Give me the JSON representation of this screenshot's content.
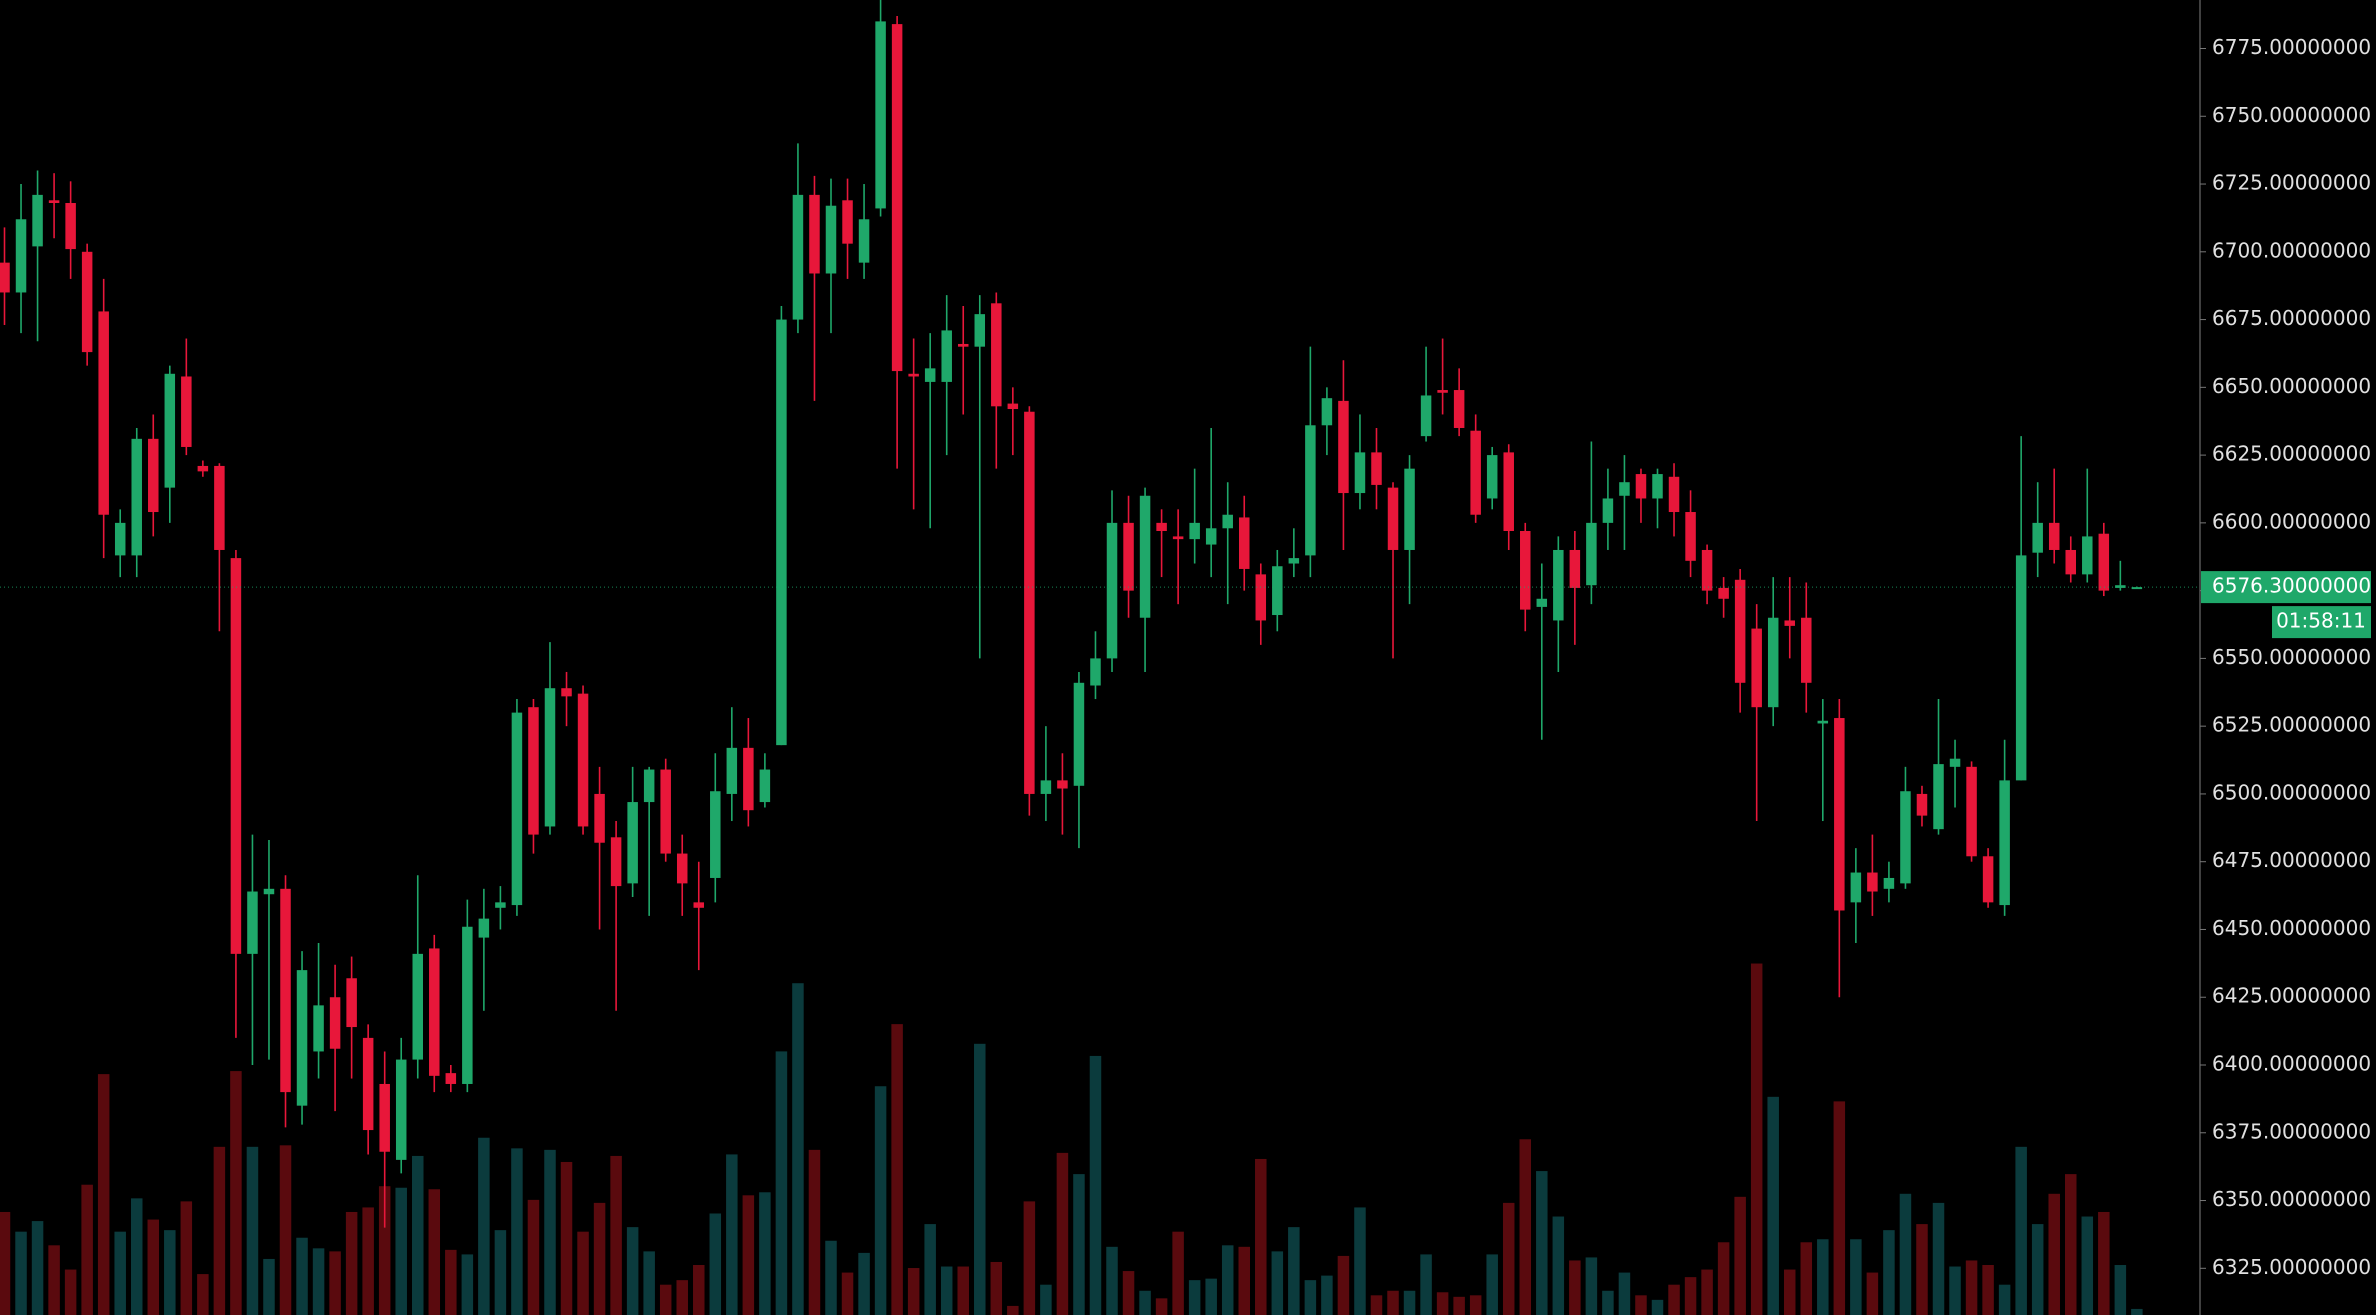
{
  "chart_data": {
    "type": "candlestick",
    "up_color": "#1fa86a",
    "down_color": "#e8173a",
    "volume_up_color": "#0b3b3d",
    "volume_down_color": "#5a0a0e",
    "ylim": [
      6325,
      6775
    ],
    "yticks": [
      {
        "value": 6325,
        "label": "6325.00000000"
      },
      {
        "value": 6350,
        "label": "6350.00000000"
      },
      {
        "value": 6375,
        "label": "6375.00000000"
      },
      {
        "value": 6400,
        "label": "6400.00000000"
      },
      {
        "value": 6425,
        "label": "6425.00000000"
      },
      {
        "value": 6450,
        "label": "6450.00000000"
      },
      {
        "value": 6475,
        "label": "6475.00000000"
      },
      {
        "value": 6500,
        "label": "6500.00000000"
      },
      {
        "value": 6525,
        "label": "6525.00000000"
      },
      {
        "value": 6550,
        "label": "6550.00000000"
      },
      {
        "value": 6575,
        "label": "6575.00000000"
      },
      {
        "value": 6600,
        "label": "6600.00000000"
      },
      {
        "value": 6625,
        "label": "6625.00000000"
      },
      {
        "value": 6650,
        "label": "6650.00000000"
      },
      {
        "value": 6675,
        "label": "6675.00000000"
      },
      {
        "value": 6700,
        "label": "6700.00000000"
      },
      {
        "value": 6725,
        "label": "6725.00000000"
      },
      {
        "value": 6750,
        "label": "6750.00000000"
      },
      {
        "value": 6775,
        "label": "6775.00000000"
      }
    ],
    "hidden_tick_values": [
      6575
    ],
    "last_price": {
      "value": 6576.3,
      "label": "6576.30000000"
    },
    "countdown": "01:58:11",
    "open": [
      6696,
      6685,
      6702,
      6719,
      6718,
      6700,
      6678,
      6588,
      6588,
      6631,
      6613,
      6654,
      6621,
      6621,
      6587,
      6441,
      6463,
      6465,
      6385,
      6405,
      6425,
      6432,
      6410,
      6393,
      6365,
      6402,
      6443,
      6397,
      6393,
      6447,
      6458,
      6459,
      6532,
      6488,
      6539,
      6537,
      6500,
      6484,
      6467,
      6497,
      6509,
      6478,
      6460,
      6469,
      6500,
      6517,
      6497,
      6518,
      6675,
      6721,
      6692,
      6719,
      6696,
      6716,
      6784,
      6655,
      6652,
      6652,
      6666,
      6665,
      6681,
      6644,
      6641,
      6500,
      6505,
      6503,
      6540,
      6550,
      6600,
      6565,
      6600,
      6595,
      6594,
      6592,
      6598,
      6602,
      6581,
      6566,
      6585,
      6588,
      6636,
      6645,
      6611,
      6626,
      6613,
      6590,
      6632,
      6649,
      6649,
      6634,
      6609,
      6626,
      6597,
      6569,
      6564,
      6590,
      6577,
      6600,
      6610,
      6618,
      6609,
      6617,
      6604,
      6590,
      6576,
      6579,
      6561,
      6532,
      6564,
      6565,
      6526,
      6528,
      6460,
      6471,
      6465,
      6467,
      6500,
      6487,
      6510,
      6510,
      6477,
      6459,
      6505,
      6589,
      6600,
      6590,
      6581,
      6596,
      6576,
      6576.2
    ],
    "high": [
      6709,
      6725,
      6730,
      6729,
      6726,
      6703,
      6690,
      6605,
      6635,
      6640,
      6658,
      6668,
      6623,
      6622,
      6590,
      6485,
      6483,
      6470,
      6442,
      6445,
      6437,
      6440,
      6415,
      6405,
      6410,
      6470,
      6448,
      6400,
      6461,
      6465,
      6466,
      6535,
      6535,
      6556,
      6545,
      6540,
      6510,
      6490,
      6510,
      6510,
      6513,
      6485,
      6475,
      6515,
      6532,
      6528,
      6515,
      6680,
      6740,
      6728,
      6727,
      6727,
      6725,
      6793,
      6787,
      6668,
      6670,
      6684,
      6680,
      6684,
      6685,
      6650,
      6643,
      6525,
      6515,
      6545,
      6560,
      6612,
      6610,
      6613,
      6605,
      6605,
      6620,
      6635,
      6615,
      6610,
      6585,
      6590,
      6598,
      6665,
      6650,
      6660,
      6640,
      6635,
      6615,
      6625,
      6665,
      6668,
      6657,
      6640,
      6628,
      6629,
      6600,
      6585,
      6595,
      6597,
      6630,
      6620,
      6625,
      6620,
      6620,
      6622,
      6612,
      6592,
      6580,
      6583,
      6570,
      6580,
      6580,
      6578,
      6535,
      6535,
      6480,
      6485,
      6475,
      6510,
      6503,
      6535,
      6520,
      6512,
      6480,
      6520,
      6632,
      6615,
      6620,
      6595,
      6620,
      6600,
      6586,
      6576.5
    ],
    "low": [
      6673,
      6670,
      6667,
      6705,
      6690,
      6658,
      6587,
      6580,
      6580,
      6595,
      6600,
      6625,
      6617,
      6560,
      6410,
      6400,
      6402,
      6377,
      6378,
      6395,
      6383,
      6395,
      6367,
      6340,
      6360,
      6395,
      6390,
      6390,
      6390,
      6420,
      6450,
      6455,
      6478,
      6485,
      6525,
      6485,
      6450,
      6420,
      6462,
      6455,
      6475,
      6455,
      6435,
      6460,
      6490,
      6488,
      6495,
      6518,
      6670,
      6645,
      6670,
      6690,
      6690,
      6713,
      6620,
      6605,
      6598,
      6625,
      6640,
      6550,
      6620,
      6625,
      6492,
      6490,
      6485,
      6480,
      6535,
      6545,
      6565,
      6545,
      6580,
      6570,
      6585,
      6580,
      6570,
      6575,
      6555,
      6560,
      6580,
      6580,
      6625,
      6590,
      6605,
      6605,
      6550,
      6570,
      6630,
      6640,
      6632,
      6600,
      6605,
      6590,
      6560,
      6520,
      6545,
      6555,
      6570,
      6590,
      6590,
      6600,
      6598,
      6595,
      6580,
      6570,
      6565,
      6530,
      6490,
      6525,
      6550,
      6530,
      6490,
      6425,
      6445,
      6455,
      6460,
      6465,
      6488,
      6485,
      6495,
      6475,
      6458,
      6455,
      6505,
      6580,
      6585,
      6578,
      6578,
      6573,
      6575,
      6576
    ],
    "close": [
      6685,
      6712,
      6721,
      6718,
      6701,
      6663,
      6603,
      6600,
      6631,
      6604,
      6655,
      6628,
      6619,
      6590,
      6441,
      6464,
      6465,
      6390,
      6435,
      6422,
      6406,
      6414,
      6376,
      6368,
      6402,
      6441,
      6396,
      6393,
      6451,
      6454,
      6460,
      6530,
      6485,
      6539,
      6536,
      6488,
      6482,
      6466,
      6497,
      6509,
      6478,
      6467,
      6458,
      6501,
      6517,
      6494,
      6509,
      6675,
      6721,
      6692,
      6717,
      6703,
      6712,
      6785,
      6656,
      6654,
      6657,
      6671,
      6665,
      6677,
      6643,
      6642,
      6500,
      6505,
      6502,
      6541,
      6550,
      6600,
      6575,
      6610,
      6597,
      6594,
      6600,
      6598,
      6603,
      6583,
      6564,
      6584,
      6587,
      6636,
      6646,
      6611,
      6626,
      6614,
      6590,
      6620,
      6647,
      6648,
      6635,
      6603,
      6625,
      6597,
      6568,
      6572,
      6590,
      6576,
      6600,
      6609,
      6615,
      6609,
      6618,
      6604,
      6586,
      6575,
      6572,
      6541,
      6532,
      6565,
      6562,
      6541,
      6527,
      6457,
      6471,
      6464,
      6469,
      6501,
      6492,
      6511,
      6513,
      6477,
      6460,
      6505,
      6588,
      6600,
      6590,
      6581,
      6595,
      6575,
      6577,
      6576.3
    ],
    "volume": [
      68,
      55,
      62,
      46,
      30,
      86,
      159,
      55,
      77,
      63,
      56,
      75,
      27,
      111,
      161,
      111,
      37,
      112,
      51,
      44,
      42,
      68,
      71,
      85,
      84,
      105,
      83,
      43,
      40,
      117,
      56,
      110,
      76,
      109,
      101,
      55,
      74,
      105,
      58,
      42,
      20,
      23,
      33,
      67,
      106,
      79,
      81,
      174,
      219,
      109,
      49,
      28,
      41,
      151,
      192,
      31,
      60,
      32,
      32,
      179,
      35,
      6,
      75,
      20,
      107,
      93,
      171,
      45,
      29,
      16,
      11,
      55,
      23,
      24,
      46,
      45,
      103,
      42,
      58,
      23,
      26,
      39,
      71,
      13,
      16,
      16,
      40,
      15,
      12,
      13,
      40,
      74,
      116,
      95,
      65,
      36,
      38,
      16,
      28,
      13,
      10,
      20,
      25,
      30,
      48,
      78,
      232,
      144,
      30,
      48,
      50,
      141,
      50,
      28,
      56,
      80,
      60,
      74,
      32,
      36,
      33,
      20,
      111,
      60,
      80,
      93,
      65,
      68,
      33,
      4
    ]
  }
}
